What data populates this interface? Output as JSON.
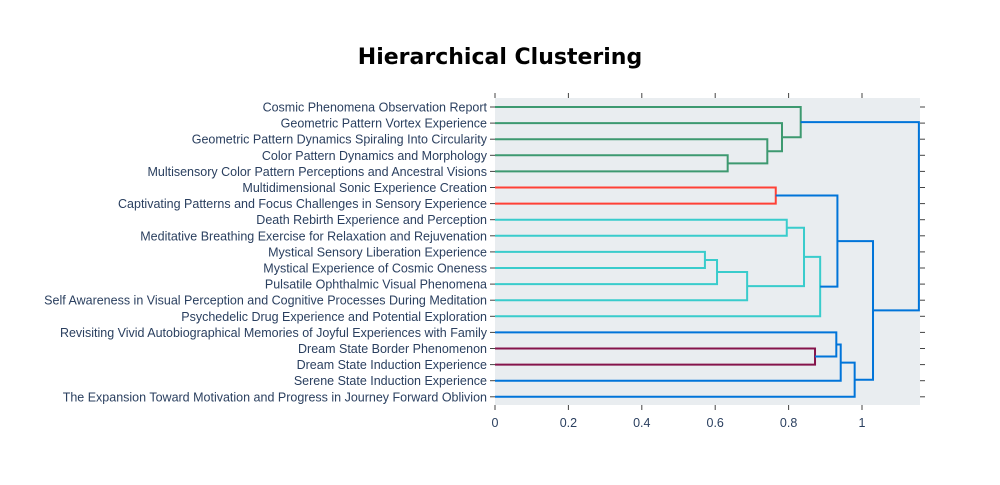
{
  "chart_data": {
    "type": "dendrogram",
    "title": "Hierarchical Clustering",
    "xlabel": "",
    "ylabel": "",
    "xlim": [
      0,
      1.16
    ],
    "x_ticks": [
      {
        "value": 0,
        "label": "0"
      },
      {
        "value": 0.2,
        "label": "0.2"
      },
      {
        "value": 0.4,
        "label": "0.4"
      },
      {
        "value": 0.6,
        "label": "0.6"
      },
      {
        "value": 0.8,
        "label": "0.8"
      },
      {
        "value": 1,
        "label": "1"
      }
    ],
    "grid": false,
    "background": "#e9edf0",
    "leaves": [
      "Cosmic Phenomena Observation Report",
      "Geometric Pattern Vortex Experience",
      "Geometric Pattern Dynamics Spiraling Into Circularity",
      "Color Pattern Dynamics and Morphology",
      "Multisensory Color Pattern Perceptions and Ancestral Visions",
      "Multidimensional Sonic Experience Creation",
      "Captivating Patterns and Focus Challenges in Sensory Experience",
      "Death Rebirth Experience and Perception",
      "Meditative Breathing Exercise for Relaxation and Rejuvenation",
      "Mystical Sensory Liberation Experience",
      "Mystical Experience of Cosmic Oneness",
      "Pulsatile Ophthalmic Visual Phenomena",
      "Self Awareness in Visual Perception and Cognitive Processes During Meditation",
      "Psychedelic Drug Experience and Potential Exploration",
      "Revisiting Vivid Autobiographical Memories of Joyful Experiences with Family",
      "Dream State Border Phenomenon",
      "Dream State Induction Experience",
      "Serene State Induction Experience",
      "The Expansion Toward Motivation and Progress in Journey Forward Oblivion"
    ],
    "colors": {
      "green": "#3d9970",
      "red": "#ff4136",
      "cyan": "#39cccc",
      "blue": "#0074d9",
      "maroon": "#85144b"
    },
    "merges": [
      {
        "left": 3,
        "right": 4,
        "height": 0.634,
        "color": "green"
      },
      {
        "left": 2,
        "right": "m0",
        "height": 0.742,
        "color": "green"
      },
      {
        "left": 1,
        "right": "m1",
        "height": 0.782,
        "color": "green"
      },
      {
        "left": 0,
        "right": "m2",
        "height": 0.833,
        "color": "green"
      },
      {
        "left": 5,
        "right": 6,
        "height": 0.765,
        "color": "red"
      },
      {
        "left": 9,
        "right": 10,
        "height": 0.572,
        "color": "cyan"
      },
      {
        "left": "m5",
        "right": 11,
        "height": 0.605,
        "color": "cyan"
      },
      {
        "left": "m6",
        "right": 12,
        "height": 0.687,
        "color": "cyan"
      },
      {
        "left": 7,
        "right": 8,
        "height": 0.795,
        "color": "cyan"
      },
      {
        "left": "m8",
        "right": "m7",
        "height": 0.842,
        "color": "cyan"
      },
      {
        "left": "m9",
        "right": 13,
        "height": 0.886,
        "color": "cyan"
      },
      {
        "left": 15,
        "right": 16,
        "height": 0.872,
        "color": "maroon"
      },
      {
        "left": 14,
        "right": "m11",
        "height": 0.93,
        "color": "blue"
      },
      {
        "left": "m4",
        "right": "m10",
        "height": 0.933,
        "color": "blue"
      },
      {
        "left": "m12",
        "right": 17,
        "height": 0.942,
        "color": "blue"
      },
      {
        "left": "m14",
        "right": 18,
        "height": 0.98,
        "color": "blue"
      },
      {
        "left": "m13",
        "right": "m15",
        "height": 1.03,
        "color": "blue"
      },
      {
        "left": "m3",
        "right": "m16",
        "height": 1.155,
        "color": "blue"
      }
    ]
  }
}
